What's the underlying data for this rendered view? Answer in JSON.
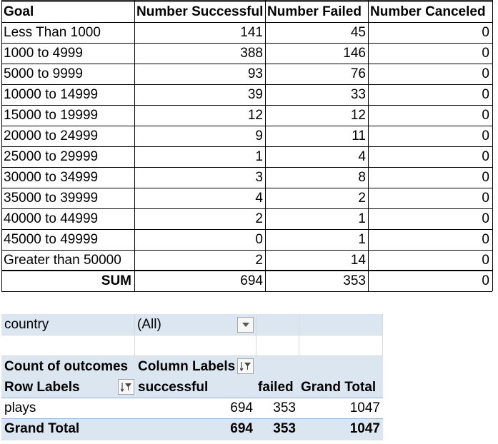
{
  "goal_table": {
    "headers": [
      "Goal",
      "Number Successful",
      "Number Failed",
      "Number Canceled"
    ],
    "rows": [
      [
        "Less Than 1000",
        "141",
        "45",
        "0"
      ],
      [
        "1000 to 4999",
        "388",
        "146",
        "0"
      ],
      [
        "5000 to 9999",
        "93",
        "76",
        "0"
      ],
      [
        "10000 to 14999",
        "39",
        "33",
        "0"
      ],
      [
        "15000 to 19999",
        "12",
        "12",
        "0"
      ],
      [
        "20000 to 24999",
        "9",
        "11",
        "0"
      ],
      [
        "25000 to 29999",
        "1",
        "4",
        "0"
      ],
      [
        "30000 to 34999",
        "3",
        "8",
        "0"
      ],
      [
        "35000 to 39999",
        "4",
        "2",
        "0"
      ],
      [
        "40000 to 44999",
        "2",
        "1",
        "0"
      ],
      [
        "45000 to 49999",
        "0",
        "1",
        "0"
      ],
      [
        "Greater than 50000",
        "2",
        "14",
        "0"
      ]
    ],
    "sum_row": [
      "SUM",
      "694",
      "353",
      "0"
    ]
  },
  "pivot": {
    "filter_label": "country",
    "filter_value": "(All)",
    "value_caption": "Count of outcomes",
    "column_labels": "Column Labels",
    "row_labels": "Row Labels",
    "col_successful": "successful",
    "col_failed": "failed",
    "col_grand_total": "Grand Total",
    "data_row": {
      "label": "plays",
      "successful": "694",
      "failed": "353",
      "total": "1047"
    },
    "total_row": {
      "label": "Grand Total",
      "successful": "694",
      "failed": "353",
      "total": "1047"
    }
  },
  "icons": {
    "filter_dropdown": "dropdown-arrow-icon",
    "column_filter": "filter-sort-icon",
    "row_filter": "filter-sort-icon"
  },
  "colors": {
    "pivot_band": "#dce6f1",
    "pivot_line": "#95b3d7",
    "gridline": "#d9d9d9"
  }
}
